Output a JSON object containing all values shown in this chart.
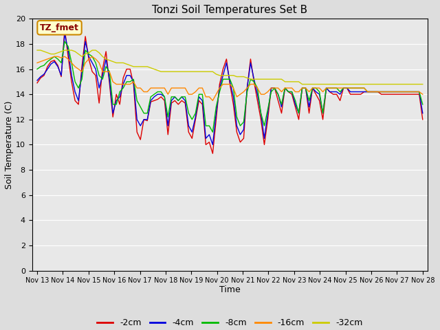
{
  "title": "Tonzi Soil Temperatures Set B",
  "xlabel": "Time",
  "ylabel": "Soil Temperature (C)",
  "ylim": [
    0,
    20
  ],
  "yticks": [
    0,
    2,
    4,
    6,
    8,
    10,
    12,
    14,
    16,
    18,
    20
  ],
  "x_labels": [
    "Nov 13",
    "Nov 14",
    "Nov 15",
    "Nov 16",
    "Nov 17",
    "Nov 18",
    "Nov 19",
    "Nov 20",
    "Nov 21",
    "Nov 22",
    "Nov 23",
    "Nov 24",
    "Nov 25",
    "Nov 26",
    "Nov 27",
    "Nov 28"
  ],
  "colors": {
    "-2cm": "#dd0000",
    "-4cm": "#0000dd",
    "-8cm": "#00bb00",
    "-16cm": "#ff8800",
    "-32cm": "#cccc00"
  },
  "annotation_text": "TZ_fmet",
  "annotation_bg": "#ffffcc",
  "annotation_border": "#cc8800",
  "fig_bg": "#dddddd",
  "plot_bg": "#e8e8e8",
  "series": {
    "-2cm": [
      14.9,
      15.3,
      15.5,
      16.2,
      16.6,
      16.7,
      16.3,
      15.4,
      19.2,
      17.0,
      15.0,
      13.5,
      13.2,
      16.2,
      18.6,
      16.8,
      15.8,
      15.5,
      13.3,
      16.0,
      17.4,
      14.9,
      12.2,
      14.0,
      13.2,
      15.3,
      16.0,
      16.0,
      14.8,
      11.0,
      10.4,
      12.0,
      11.9,
      13.4,
      13.5,
      13.6,
      13.8,
      13.5,
      10.8,
      13.3,
      13.5,
      13.2,
      13.5,
      13.3,
      11.0,
      10.5,
      12.0,
      13.5,
      13.2,
      10.0,
      10.2,
      9.3,
      12.0,
      14.8,
      16.0,
      16.8,
      14.8,
      13.2,
      11.0,
      10.2,
      10.5,
      14.5,
      16.8,
      15.0,
      13.5,
      12.0,
      10.0,
      12.0,
      14.5,
      14.5,
      13.5,
      12.5,
      14.5,
      14.2,
      14.0,
      13.0,
      12.0,
      14.5,
      14.5,
      12.5,
      14.5,
      14.0,
      13.5,
      12.0,
      14.5,
      14.2,
      14.0,
      14.0,
      13.5,
      14.5,
      14.5,
      14.0,
      14.0,
      14.0,
      14.0,
      14.2,
      14.2,
      14.2,
      14.2,
      14.2,
      14.0,
      14.0,
      14.0,
      14.0,
      14.0,
      14.0,
      14.0,
      14.0,
      14.0,
      14.0,
      14.0,
      14.0,
      12.0
    ],
    "-4cm": [
      15.1,
      15.4,
      15.6,
      16.0,
      16.4,
      16.6,
      16.2,
      15.5,
      18.8,
      17.5,
      15.5,
      14.2,
      13.5,
      15.8,
      18.2,
      17.0,
      16.5,
      16.0,
      14.5,
      15.5,
      16.8,
      15.2,
      12.5,
      13.5,
      13.8,
      14.8,
      15.5,
      15.5,
      15.0,
      12.0,
      11.5,
      12.0,
      12.0,
      13.5,
      13.8,
      14.0,
      14.0,
      13.8,
      11.5,
      13.5,
      13.8,
      13.5,
      13.8,
      13.5,
      11.5,
      11.0,
      12.2,
      13.8,
      13.5,
      10.5,
      10.8,
      10.0,
      12.5,
      14.5,
      15.5,
      16.5,
      15.0,
      13.8,
      11.5,
      10.8,
      11.2,
      14.5,
      16.5,
      15.2,
      14.0,
      12.5,
      10.5,
      12.5,
      14.5,
      14.5,
      14.0,
      13.0,
      14.5,
      14.2,
      14.2,
      13.2,
      12.5,
      14.5,
      14.5,
      13.0,
      14.5,
      14.2,
      14.0,
      12.5,
      14.5,
      14.2,
      14.2,
      14.2,
      14.0,
      14.5,
      14.5,
      14.2,
      14.2,
      14.2,
      14.2,
      14.2,
      14.2,
      14.2,
      14.2,
      14.2,
      14.2,
      14.2,
      14.2,
      14.2,
      14.2,
      14.2,
      14.2,
      14.2,
      14.2,
      14.2,
      14.2,
      14.2,
      12.5
    ],
    "-8cm": [
      16.0,
      16.2,
      16.3,
      16.6,
      16.8,
      17.0,
      16.8,
      16.5,
      18.2,
      17.8,
      16.5,
      15.0,
      14.5,
      15.2,
      17.5,
      17.2,
      17.0,
      16.5,
      15.5,
      15.2,
      16.2,
      15.8,
      13.2,
      13.2,
      14.2,
      14.5,
      15.0,
      15.0,
      15.2,
      13.5,
      13.0,
      12.5,
      12.5,
      13.8,
      14.0,
      14.2,
      14.2,
      13.8,
      12.2,
      13.8,
      13.8,
      13.5,
      13.8,
      13.8,
      12.5,
      12.0,
      12.5,
      14.0,
      14.0,
      11.5,
      11.5,
      11.0,
      13.0,
      14.2,
      15.2,
      15.2,
      15.2,
      14.5,
      12.2,
      11.5,
      11.8,
      14.2,
      15.2,
      15.0,
      14.5,
      12.5,
      11.5,
      12.8,
      14.2,
      14.5,
      14.0,
      13.2,
      14.5,
      14.2,
      14.2,
      13.5,
      12.5,
      14.5,
      14.5,
      13.5,
      14.5,
      14.5,
      14.2,
      12.5,
      14.5,
      14.5,
      14.5,
      14.5,
      14.2,
      14.5,
      14.5,
      14.5,
      14.5,
      14.5,
      14.5,
      14.5,
      14.2,
      14.2,
      14.2,
      14.2,
      14.2,
      14.2,
      14.2,
      14.2,
      14.2,
      14.2,
      14.2,
      14.2,
      14.2,
      14.2,
      14.2,
      14.2,
      13.2
    ],
    "-16cm": [
      16.5,
      16.6,
      16.7,
      16.8,
      16.9,
      17.0,
      17.0,
      16.9,
      17.0,
      16.8,
      16.5,
      16.2,
      16.0,
      15.8,
      16.5,
      16.8,
      17.0,
      16.8,
      16.5,
      15.8,
      15.8,
      15.8,
      15.0,
      14.8,
      14.8,
      14.8,
      14.8,
      14.8,
      15.0,
      14.5,
      14.5,
      14.2,
      14.2,
      14.5,
      14.5,
      14.5,
      14.5,
      14.5,
      14.0,
      14.5,
      14.5,
      14.5,
      14.5,
      14.5,
      14.0,
      14.0,
      14.2,
      14.5,
      14.5,
      13.8,
      13.8,
      13.5,
      14.0,
      14.5,
      14.8,
      14.8,
      14.8,
      14.5,
      13.8,
      14.0,
      14.2,
      14.5,
      14.8,
      14.8,
      14.5,
      14.0,
      14.0,
      14.2,
      14.5,
      14.5,
      14.5,
      14.2,
      14.5,
      14.5,
      14.5,
      14.2,
      14.2,
      14.5,
      14.5,
      14.2,
      14.5,
      14.5,
      14.5,
      14.2,
      14.5,
      14.5,
      14.5,
      14.5,
      14.5,
      14.5,
      14.5,
      14.5,
      14.5,
      14.5,
      14.5,
      14.5,
      14.2,
      14.2,
      14.2,
      14.2,
      14.2,
      14.2,
      14.2,
      14.2,
      14.2,
      14.2,
      14.2,
      14.2,
      14.2,
      14.2,
      14.2,
      14.2,
      14.0
    ],
    "-32cm": [
      17.5,
      17.5,
      17.4,
      17.3,
      17.2,
      17.2,
      17.3,
      17.4,
      17.5,
      17.5,
      17.5,
      17.4,
      17.2,
      17.0,
      17.2,
      17.3,
      17.5,
      17.5,
      17.3,
      17.0,
      16.8,
      16.7,
      16.6,
      16.5,
      16.5,
      16.5,
      16.4,
      16.3,
      16.2,
      16.2,
      16.2,
      16.2,
      16.2,
      16.1,
      16.0,
      15.9,
      15.8,
      15.8,
      15.8,
      15.8,
      15.8,
      15.8,
      15.8,
      15.8,
      15.8,
      15.8,
      15.8,
      15.8,
      15.8,
      15.8,
      15.8,
      15.8,
      15.6,
      15.5,
      15.5,
      15.5,
      15.5,
      15.5,
      15.4,
      15.4,
      15.4,
      15.3,
      15.2,
      15.2,
      15.2,
      15.2,
      15.2,
      15.2,
      15.2,
      15.2,
      15.2,
      15.2,
      15.0,
      15.0,
      15.0,
      15.0,
      15.0,
      14.8,
      14.8,
      14.8,
      14.8,
      14.8,
      14.8,
      14.8,
      14.8,
      14.8,
      14.8,
      14.8,
      14.8,
      14.8,
      14.8,
      14.8,
      14.8,
      14.8,
      14.8,
      14.8,
      14.8,
      14.8,
      14.8,
      14.8,
      14.8,
      14.8,
      14.8,
      14.8,
      14.8,
      14.8,
      14.8,
      14.8,
      14.8,
      14.8,
      14.8,
      14.8,
      14.8
    ]
  }
}
